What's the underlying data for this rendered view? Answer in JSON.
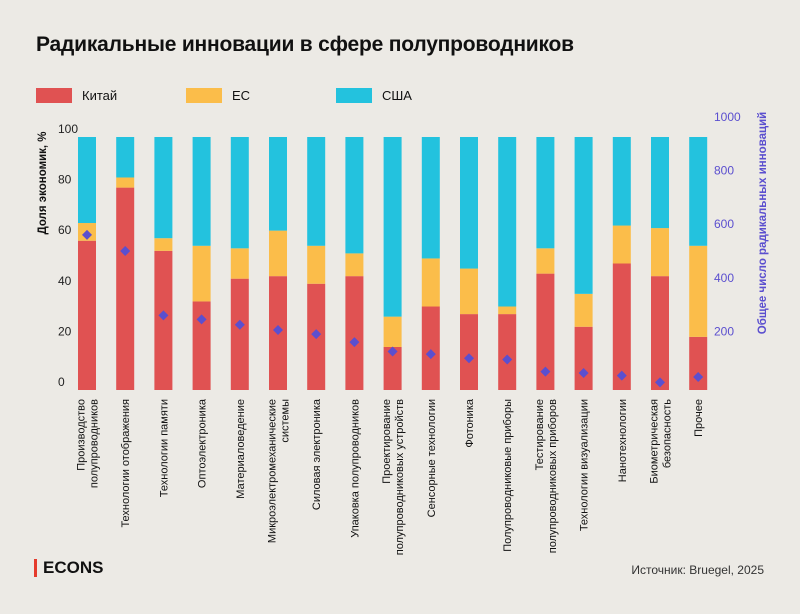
{
  "title": "Радикальные инновации в сфере полупроводников",
  "source": "Источник: Bruegel, 2025",
  "logo": "ECONS",
  "colors": {
    "china": "#E05252",
    "eu": "#FBBD4A",
    "usa": "#23C2DE",
    "marker": "#5B4FCF",
    "right_axis": "#5B4FCF"
  },
  "legend": [
    {
      "label": "Китай",
      "color": "#E05252"
    },
    {
      "label": "ЕС",
      "color": "#FBBD4A"
    },
    {
      "label": "США",
      "color": "#23C2DE"
    }
  ],
  "chart_data": {
    "type": "bar",
    "stacked": true,
    "title": "Радикальные инновации в сфере полупроводников",
    "ylabel": "Доля экономик, %",
    "y2label": "Общее число радикальных инноваций",
    "ylim": [
      0,
      100
    ],
    "y2lim": [
      0,
      1000
    ],
    "yticks": [
      0,
      20,
      40,
      60,
      80,
      100
    ],
    "y2ticks": [
      200,
      400,
      600,
      800,
      1000
    ],
    "categories": [
      "Производство полупроводников",
      "Технологии отображения",
      "Технологии памяти",
      "Оптоэлектроника",
      "Материаловедение",
      "Микроэлектромеханические системы",
      "Силовая электроника",
      "Упаковка полупроводников",
      "Проектирование полупроводниковых устройств",
      "Сенсорные технологии",
      "Фотоника",
      "Полупроводниковые приборы",
      "Тестирование полупроводниковых приборов",
      "Технологии визуализации",
      "Нанотехнологии",
      "Биометрическая безопасность",
      "Прочее"
    ],
    "category_lines": [
      [
        "Производство",
        "полупроводников"
      ],
      [
        "Технологии отображения"
      ],
      [
        "Технологии памяти"
      ],
      [
        "Оптоэлектроника"
      ],
      [
        "Материаловедение"
      ],
      [
        "Микроэлектромеханические",
        "системы"
      ],
      [
        "Силовая электроника"
      ],
      [
        "Упаковка полупроводников"
      ],
      [
        "Проектирование",
        "полупроводниковых устройств"
      ],
      [
        "Сенсорные технологии"
      ],
      [
        "Фотоника"
      ],
      [
        "Полупроводниковые приборы"
      ],
      [
        "Тестирование",
        "полупроводниковых приборов"
      ],
      [
        "Технологии визуализации"
      ],
      [
        "Нанотехнологии"
      ],
      [
        "Биометрическая",
        "безопасность"
      ],
      [
        "Прочее"
      ]
    ],
    "series": [
      {
        "name": "Китай",
        "values": [
          59,
          80,
          55,
          35,
          44,
          45,
          42,
          45,
          17,
          33,
          30,
          30,
          46,
          25,
          50,
          45,
          21
        ]
      },
      {
        "name": "ЕС",
        "values": [
          7,
          4,
          5,
          22,
          12,
          18,
          15,
          9,
          12,
          19,
          18,
          3,
          10,
          13,
          15,
          19,
          36
        ]
      },
      {
        "name": "США",
        "values": [
          34,
          16,
          40,
          43,
          44,
          37,
          43,
          46,
          71,
          48,
          52,
          67,
          44,
          62,
          35,
          36,
          43
        ]
      }
    ],
    "total_innovations": [
      560,
      500,
      260,
      245,
      225,
      205,
      190,
      160,
      125,
      115,
      100,
      95,
      50,
      45,
      35,
      10,
      30
    ],
    "grid": false,
    "legend_position": "top-left"
  }
}
